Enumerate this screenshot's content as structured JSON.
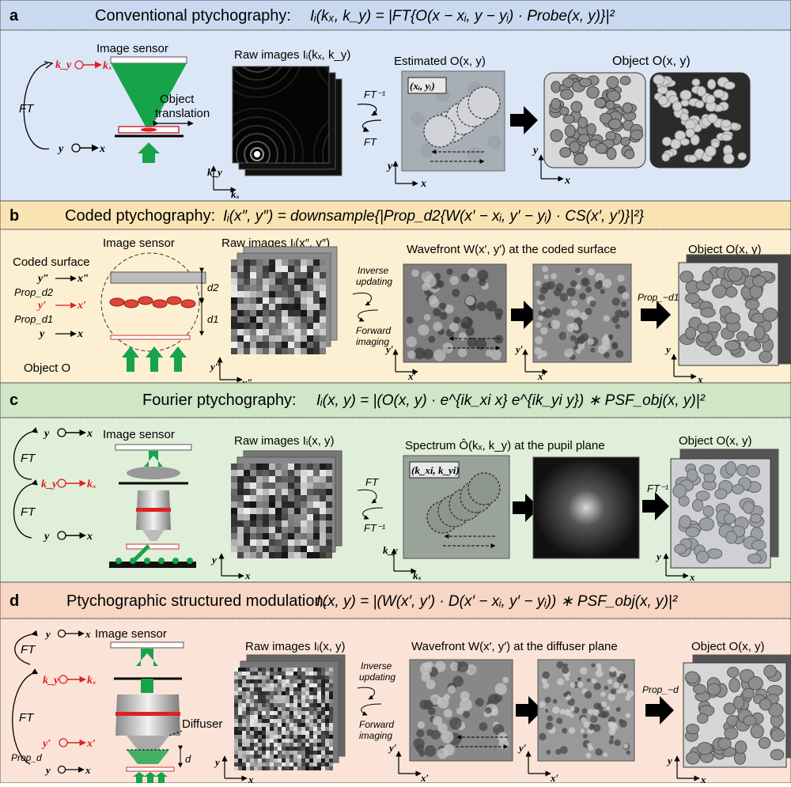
{
  "panels": [
    {
      "letter": "a",
      "heading": "Conventional ptychography:",
      "equation": "Iᵢ(kₓ, k_y) = |FT{O(x − xᵢ, y − yᵢ) · Probe(x, y)}|²",
      "header_bg": "#c9daf0",
      "body_bg": "#dbe7f6",
      "labels": {
        "sensor": "Image sensor",
        "raw": "Raw images Iᵢ(kₓ, k_y)",
        "estimated": "Estimated O(x, y)",
        "object": "Object O(x, y)",
        "translation1": "Object",
        "translation2": "translation",
        "ft_loop": "FT",
        "ft_inv": "FT⁻¹",
        "ft_fwd": "FT",
        "ky": "k_y",
        "kx": "kₓ",
        "y": "y",
        "x": "x",
        "probe_pos": "(xᵢ, yᵢ)"
      }
    },
    {
      "letter": "b",
      "heading": "Coded ptychography:",
      "equation": "Iᵢ(x″, y″) = downsample{|Prop_d2{W(x′ − xᵢ, y′ − yᵢ) · CS(x′, y′)}|²}",
      "header_bg": "#fae3b3",
      "body_bg": "#fdf0d2",
      "labels": {
        "sensor": "Image sensor",
        "coded": "Coded surface",
        "object_o": "Object O",
        "raw": "Raw images Iᵢ(x″, y″)",
        "wavefront": "Wavefront W(x′, y′) at the coded surface",
        "object": "Object O(x, y)",
        "inverse": "Inverse",
        "updating": "updating",
        "forward": "Forward",
        "imaging": "imaging",
        "prop_d1": "Prop_−d1",
        "prop_d2_left": "Prop_d2",
        "prop_d1_left": "Prop_d1",
        "d1": "d1",
        "d2": "d2",
        "ypp": "y″",
        "xpp": "x″",
        "yp": "y′",
        "xp": "x′",
        "y": "y",
        "x": "x"
      }
    },
    {
      "letter": "c",
      "heading": "Fourier ptychography:",
      "equation": "Iᵢ(x, y) = |(O(x, y) · e^{ik_xi x} e^{ik_yi y}) ∗ PSF_obj(x, y)|²",
      "header_bg": "#cfe6c7",
      "body_bg": "#e0efd9",
      "labels": {
        "sensor": "Image sensor",
        "raw": "Raw images Iᵢ(x, y)",
        "spectrum": "Spectrum Ô(kₓ, k_y) at the pupil plane",
        "object": "Object O(x, y)",
        "ft_top": "FT",
        "ft_bottom": "FT",
        "ft_fwd": "FT",
        "ft_inv": "FT⁻¹",
        "ft_inv2": "FT⁻¹",
        "probe_pos": "(k_xi, k_yi)",
        "ky": "k_y",
        "kx": "kₓ",
        "y": "y",
        "x": "x"
      }
    },
    {
      "letter": "d",
      "heading": "Ptychographic structured modulation:",
      "equation": "Iᵢ(x, y) = |(W(x′, y′) · D(x′ − xᵢ, y′ − yᵢ)) ∗ PSF_obj(x, y)|²",
      "header_bg": "#f7d6c4",
      "body_bg": "#fbe4d7",
      "labels": {
        "sensor": "Image sensor",
        "diffuser": "Diffuser",
        "raw": "Raw images Iᵢ(x, y)",
        "wavefront": "Wavefront W(x′, y′) at the diffuser plane",
        "object": "Object O(x, y)",
        "inverse": "Inverse",
        "updating": "updating",
        "forward": "Forward",
        "imaging": "imaging",
        "prop_d": "Prop_−d",
        "prop_d_left": "Prop_d",
        "ft_top": "FT",
        "ft_mid": "FT",
        "d": "d",
        "yp": "y′",
        "xp": "x′",
        "ky": "k_y",
        "kx": "kₓ",
        "y": "y",
        "x": "x"
      }
    }
  ]
}
